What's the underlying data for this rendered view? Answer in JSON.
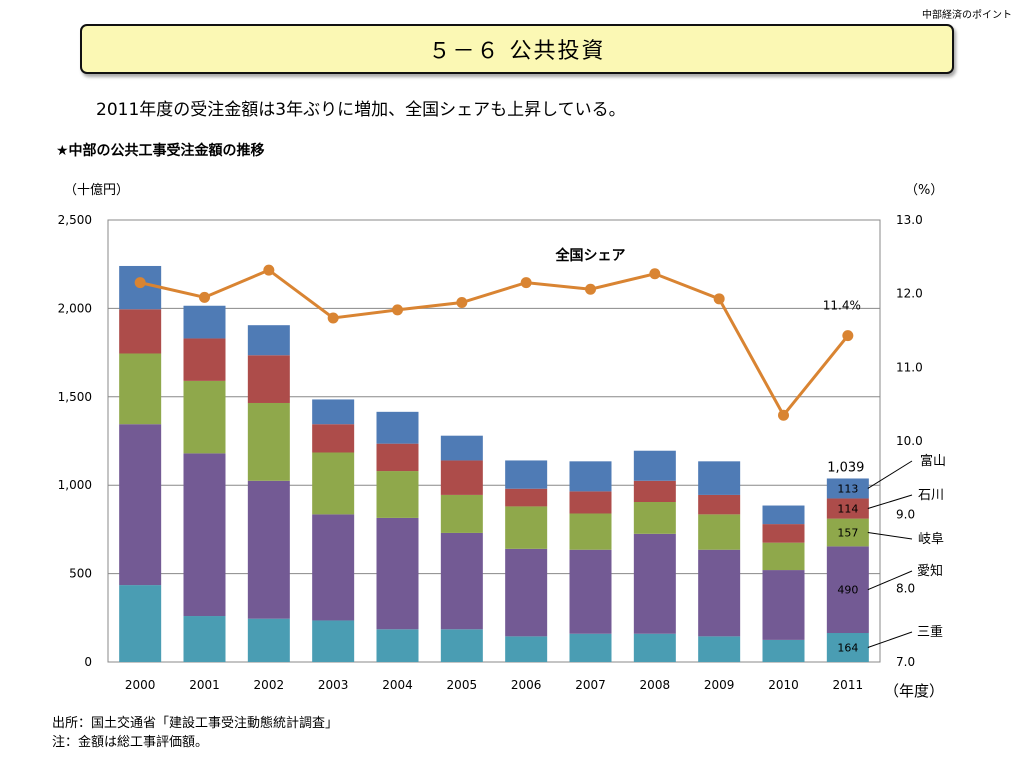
{
  "header": {
    "corner_note": "中部経済のポイント",
    "title": "５－６ 公共投資",
    "lead": "2011年度の受注金額は3年ぶりに増加、全国シェアも上昇している。"
  },
  "footnotes": {
    "source": "出所：国土交通省「建設工事受注動態統計調査」",
    "note": "注：金額は総工事評価額。"
  },
  "chart_data": {
    "type": "bar",
    "title": "★中部の公共工事受注金額の推移",
    "left_unit": "（十億円）",
    "right_unit": "（%）",
    "xlabel": "（年度）",
    "categories": [
      "2000",
      "2001",
      "2002",
      "2003",
      "2004",
      "2005",
      "2006",
      "2007",
      "2008",
      "2009",
      "2010",
      "2011"
    ],
    "ylim": [
      0,
      2500
    ],
    "yticks": [
      "0",
      "500",
      "1,000",
      "1,500",
      "2,000",
      "2,500"
    ],
    "y2lim": [
      7.0,
      13.0
    ],
    "y2ticks": [
      "7.0",
      "8.0",
      "9.0",
      "10.0",
      "11.0",
      "12.0",
      "13.0"
    ],
    "gridlines": true,
    "series": [
      {
        "name": "三重",
        "color": "#4a9db3",
        "values": [
          435,
          260,
          245,
          235,
          185,
          185,
          145,
          160,
          160,
          145,
          125,
          164
        ]
      },
      {
        "name": "愛知",
        "color": "#735a94",
        "values": [
          910,
          920,
          780,
          600,
          630,
          545,
          495,
          475,
          565,
          490,
          395,
          490
        ]
      },
      {
        "name": "岐阜",
        "color": "#8fa84b",
        "values": [
          400,
          410,
          440,
          350,
          265,
          215,
          240,
          205,
          180,
          200,
          155,
          157
        ]
      },
      {
        "name": "石川",
        "color": "#ad4c4a",
        "values": [
          250,
          240,
          270,
          160,
          155,
          195,
          100,
          125,
          120,
          110,
          105,
          114
        ]
      },
      {
        "name": "富山",
        "color": "#4f7bb5",
        "values": [
          245,
          185,
          170,
          140,
          180,
          140,
          160,
          170,
          170,
          190,
          105,
          113
        ]
      }
    ],
    "line": {
      "name": "全国シェア",
      "color": "#d98432",
      "values": [
        12.15,
        11.95,
        12.32,
        11.67,
        11.78,
        11.88,
        12.15,
        12.06,
        12.27,
        11.93,
        10.35,
        11.43
      ]
    },
    "annotations": {
      "total_2011": "1,039",
      "share_2011": "11.4%",
      "seg_labels_2011": [
        "164",
        "490",
        "157",
        "114",
        "113"
      ]
    }
  }
}
